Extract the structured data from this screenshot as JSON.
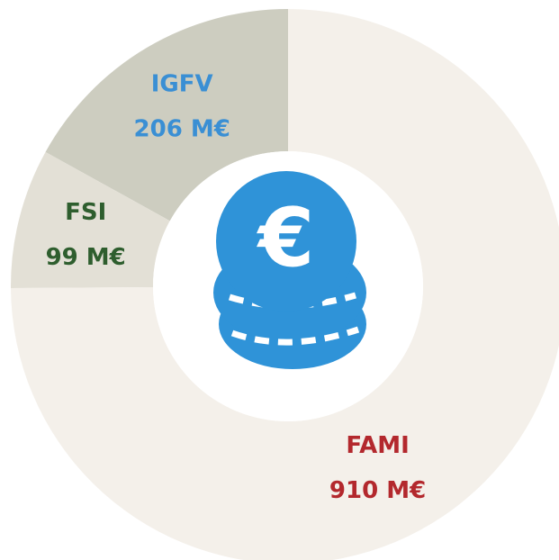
{
  "chart_data": {
    "type": "donut",
    "categories": [
      "IGFV",
      "FSI",
      "FAMI"
    ],
    "values": [
      206,
      99,
      910
    ],
    "value_labels": [
      "206 M€",
      "99 M€",
      "910 M€"
    ],
    "colors": [
      "#cdcdc0",
      "#e3e0d6",
      "#f4f0ea"
    ],
    "label_colors": [
      "#3a8fd4",
      "#2e5e2e",
      "#b3282d"
    ]
  }
}
